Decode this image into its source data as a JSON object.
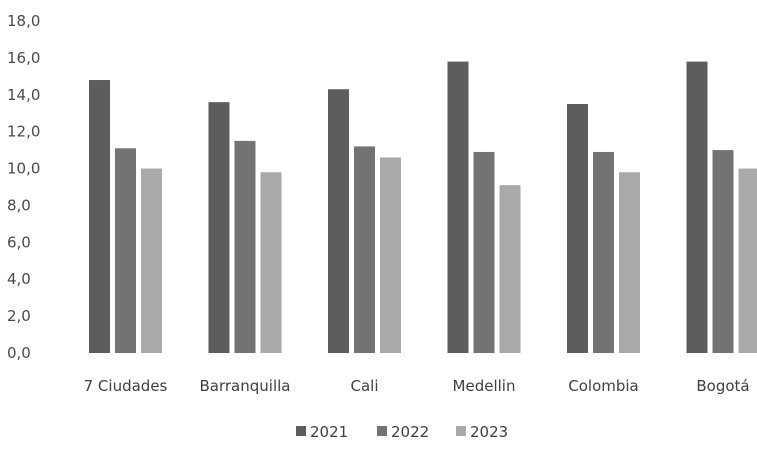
{
  "chart_data": {
    "type": "bar",
    "categories": [
      "7 Ciudades",
      "Barranquilla",
      "Cali",
      "Medellin",
      "Colombia",
      "Bogotá"
    ],
    "series": [
      {
        "name": "2021",
        "values": [
          14.8,
          13.6,
          14.3,
          15.8,
          13.5,
          15.8
        ],
        "color": "#5d5d5d"
      },
      {
        "name": "2022",
        "values": [
          11.1,
          11.5,
          11.2,
          10.9,
          10.9,
          11.0
        ],
        "color": "#737373"
      },
      {
        "name": "2023",
        "values": [
          10.0,
          9.8,
          10.6,
          9.1,
          9.8,
          10.0
        ],
        "color": "#a9a9a9"
      }
    ],
    "title": "",
    "xlabel": "",
    "ylabel": "",
    "ylim": [
      0,
      18
    ],
    "yticks": [
      "0,0",
      "2,0",
      "4,0",
      "6,0",
      "8,0",
      "10,0",
      "12,0",
      "14,0",
      "16,0",
      "18,0"
    ],
    "grid": false,
    "legend_position": "bottom"
  }
}
